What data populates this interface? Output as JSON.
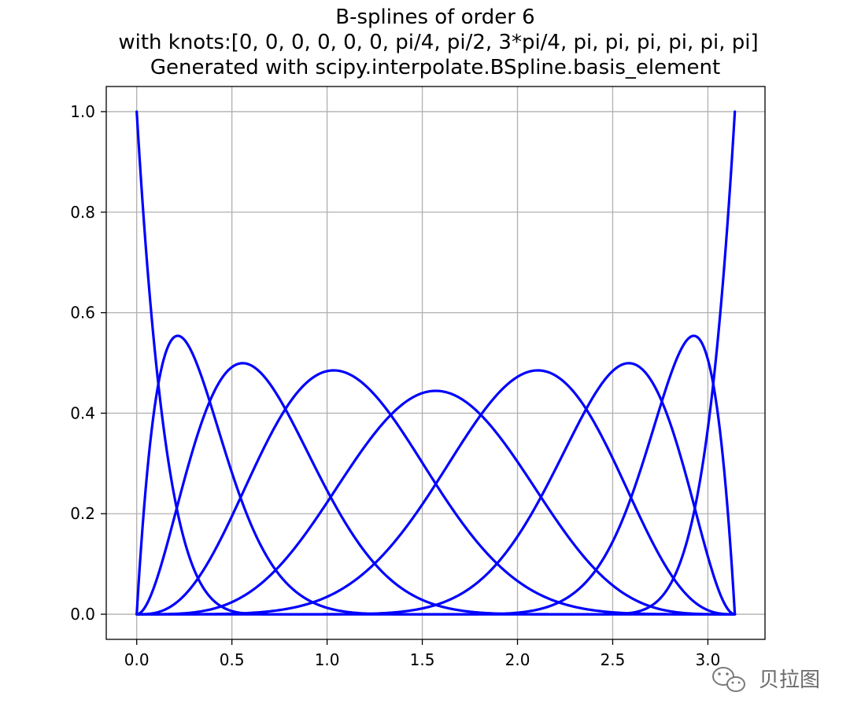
{
  "chart_data": {
    "type": "line",
    "title_lines": [
      "B-splines of order 6",
      "with knots:[0, 0, 0, 0, 0, 0, pi/4, pi/2, 3*pi/4, pi, pi, pi, pi, pi, pi]",
      "Generated with scipy.interpolate.BSpline.basis_element"
    ],
    "xlabel": "",
    "ylabel": "",
    "xlim": [
      -0.16,
      3.3
    ],
    "ylim": [
      -0.05,
      1.05
    ],
    "xticks": [
      0.0,
      0.5,
      1.0,
      1.5,
      2.0,
      2.5,
      3.0
    ],
    "xtick_labels": [
      "0.0",
      "0.5",
      "1.0",
      "1.5",
      "2.0",
      "2.5",
      "3.0"
    ],
    "yticks": [
      0.0,
      0.2,
      0.4,
      0.6,
      0.8,
      1.0
    ],
    "ytick_labels": [
      "0.0",
      "0.2",
      "0.4",
      "0.6",
      "0.8",
      "1.0"
    ],
    "grid": true,
    "line_color": "#0000ff",
    "degree": 5,
    "knots": [
      0,
      0,
      0,
      0,
      0,
      0,
      0.7853981633974483,
      1.5707963267948966,
      2.356194490192345,
      3.141592653589793,
      3.141592653589793,
      3.141592653589793,
      3.141592653589793,
      3.141592653589793,
      3.141592653589793
    ],
    "num_basis_functions": 9
  },
  "watermark": {
    "text": "贝拉图",
    "icon": "wechat-icon"
  }
}
